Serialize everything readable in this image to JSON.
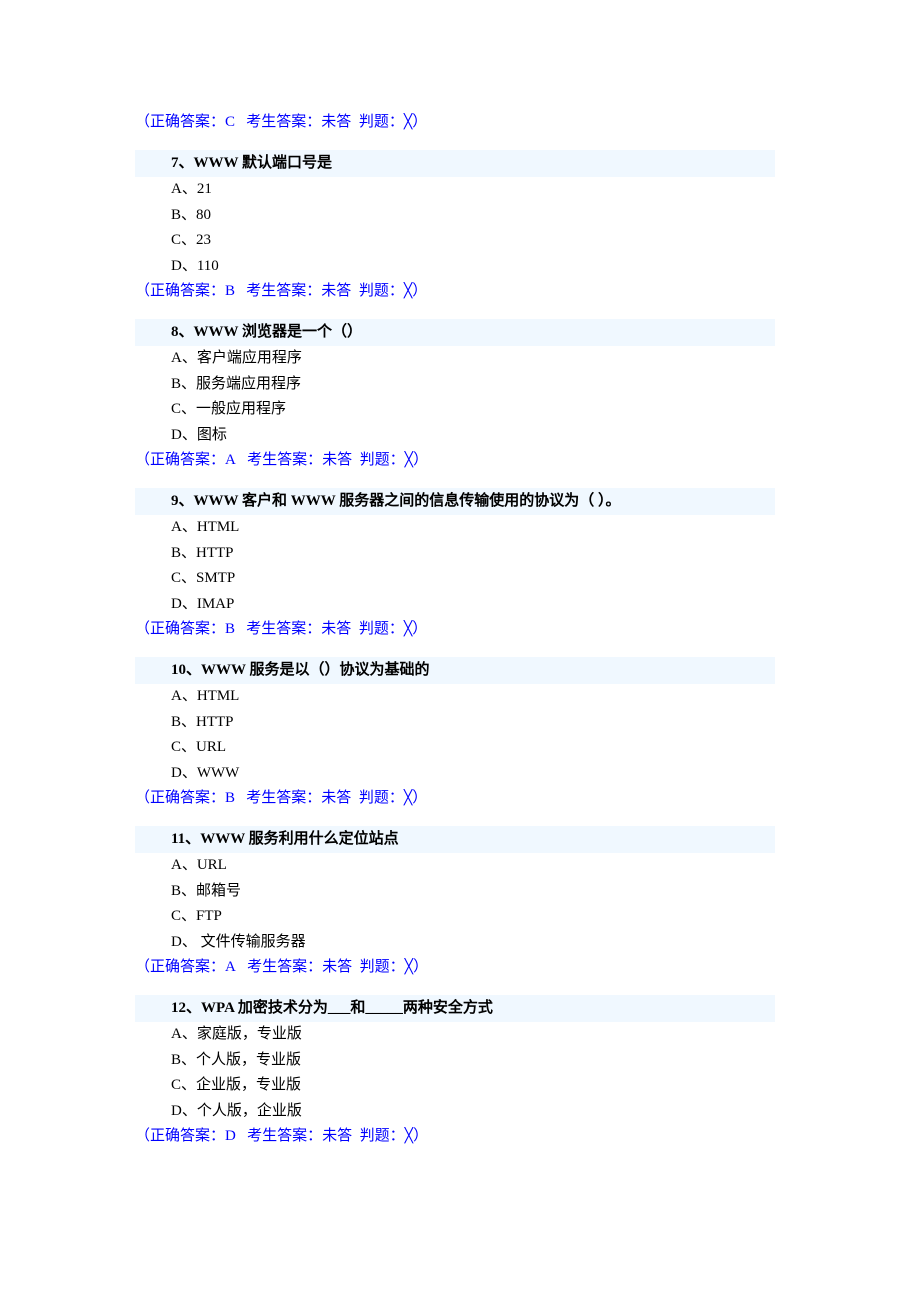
{
  "leadingAnswer": {
    "correct": "C",
    "candidate": "未答",
    "judge": "╳"
  },
  "questions": [
    {
      "num": "7",
      "title": "WWW 默认端口号是",
      "options": [
        "A、21",
        "B、80",
        "C、23",
        "D、110"
      ],
      "correct": "B",
      "candidate": "未答",
      "judge": "╳"
    },
    {
      "num": "8",
      "title": "WWW 浏览器是一个（）",
      "options": [
        "A、客户端应用程序",
        "B、服务端应用程序",
        "C、一般应用程序",
        "D、图标"
      ],
      "correct": "A",
      "candidate": "未答",
      "judge": "╳"
    },
    {
      "num": "9",
      "title": "WWW 客户和 WWW 服务器之间的信息传输使用的协议为（ ）。",
      "options": [
        "A、HTML",
        "B、HTTP",
        "C、SMTP",
        "D、IMAP"
      ],
      "correct": "B",
      "candidate": "未答",
      "judge": "╳"
    },
    {
      "num": "10",
      "title": "WWW 服务是以（）协议为基础的",
      "options": [
        "A、HTML",
        "B、HTTP",
        "C、URL",
        "D、WWW"
      ],
      "correct": "B",
      "candidate": "未答",
      "judge": "╳"
    },
    {
      "num": "11",
      "title": "WWW 服务利用什么定位站点",
      "options": [
        "A、URL",
        "B、邮箱号",
        "C、FTP",
        "D、 文件传输服务器"
      ],
      "correct": "A",
      "candidate": "未答",
      "judge": "╳"
    },
    {
      "num": "12",
      "title": "WPA 加密技术分为___和_____两种安全方式",
      "options": [
        "A、家庭版，专业版",
        "B、个人版，专业版",
        "C、企业版，专业版",
        "D、个人版，企业版"
      ],
      "correct": "D",
      "candidate": "未答",
      "judge": "╳"
    }
  ],
  "labels": {
    "correctPrefix": "（正确答案：",
    "candidatePrefix": "考生答案：",
    "judgePrefix": "判题：",
    "closeParen": "）"
  },
  "styling": {
    "textColor": "#000000",
    "answerColor": "#0000ff",
    "highlightBg": "#f0f8ff",
    "pageBg": "#ffffff",
    "fontSize": 15,
    "fontFamily": "SimSun"
  }
}
